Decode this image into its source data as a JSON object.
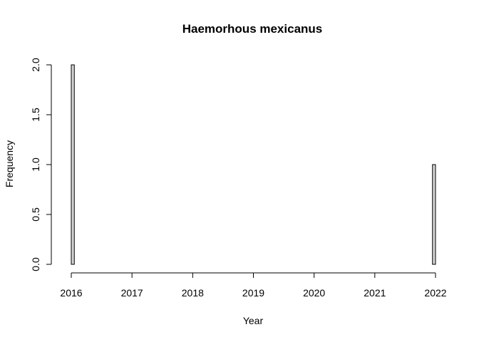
{
  "chart_data": {
    "type": "bar",
    "title": "Haemorhous mexicanus",
    "xlabel": "Year",
    "ylabel": "Frequency",
    "xlim": [
      2016,
      2022
    ],
    "ylim": [
      0,
      2
    ],
    "x_ticks": [
      "2016",
      "2017",
      "2018",
      "2019",
      "2020",
      "2021",
      "2022"
    ],
    "y_ticks": [
      "0.0",
      "0.5",
      "1.0",
      "1.5",
      "2.0"
    ],
    "bin_width": 0.05,
    "bins": [
      {
        "start": 2016.0,
        "end": 2016.05,
        "count": 2
      },
      {
        "start": 2021.95,
        "end": 2022.0,
        "count": 1
      }
    ],
    "bar_fill": "#d3d3d3",
    "grid": false
  }
}
